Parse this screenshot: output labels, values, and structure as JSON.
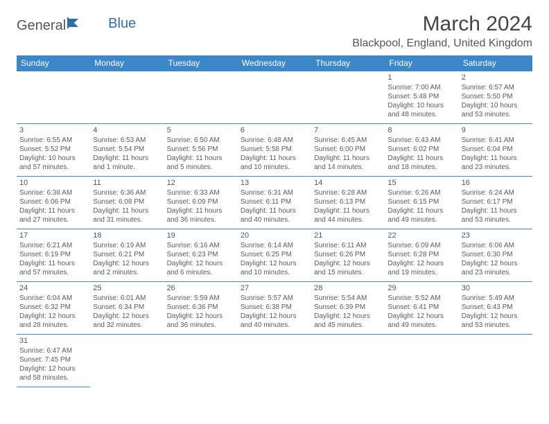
{
  "logo": {
    "part1": "General",
    "part2": "Blue"
  },
  "title": "March 2024",
  "location": "Blackpool, England, United Kingdom",
  "colors": {
    "header_bg": "#3b87c8",
    "header_text": "#ffffff",
    "border": "#3b87c8",
    "text": "#5a5a5a"
  },
  "columns": [
    "Sunday",
    "Monday",
    "Tuesday",
    "Wednesday",
    "Thursday",
    "Friday",
    "Saturday"
  ],
  "weeks": [
    [
      null,
      null,
      null,
      null,
      null,
      {
        "n": "1",
        "sr": "Sunrise: 7:00 AM",
        "ss": "Sunset: 5:48 PM",
        "dl": "Daylight: 10 hours and 48 minutes."
      },
      {
        "n": "2",
        "sr": "Sunrise: 6:57 AM",
        "ss": "Sunset: 5:50 PM",
        "dl": "Daylight: 10 hours and 53 minutes."
      }
    ],
    [
      {
        "n": "3",
        "sr": "Sunrise: 6:55 AM",
        "ss": "Sunset: 5:52 PM",
        "dl": "Daylight: 10 hours and 57 minutes."
      },
      {
        "n": "4",
        "sr": "Sunrise: 6:53 AM",
        "ss": "Sunset: 5:54 PM",
        "dl": "Daylight: 11 hours and 1 minute."
      },
      {
        "n": "5",
        "sr": "Sunrise: 6:50 AM",
        "ss": "Sunset: 5:56 PM",
        "dl": "Daylight: 11 hours and 5 minutes."
      },
      {
        "n": "6",
        "sr": "Sunrise: 6:48 AM",
        "ss": "Sunset: 5:58 PM",
        "dl": "Daylight: 11 hours and 10 minutes."
      },
      {
        "n": "7",
        "sr": "Sunrise: 6:45 AM",
        "ss": "Sunset: 6:00 PM",
        "dl": "Daylight: 11 hours and 14 minutes."
      },
      {
        "n": "8",
        "sr": "Sunrise: 6:43 AM",
        "ss": "Sunset: 6:02 PM",
        "dl": "Daylight: 11 hours and 18 minutes."
      },
      {
        "n": "9",
        "sr": "Sunrise: 6:41 AM",
        "ss": "Sunset: 6:04 PM",
        "dl": "Daylight: 11 hours and 23 minutes."
      }
    ],
    [
      {
        "n": "10",
        "sr": "Sunrise: 6:38 AM",
        "ss": "Sunset: 6:06 PM",
        "dl": "Daylight: 11 hours and 27 minutes."
      },
      {
        "n": "11",
        "sr": "Sunrise: 6:36 AM",
        "ss": "Sunset: 6:08 PM",
        "dl": "Daylight: 11 hours and 31 minutes."
      },
      {
        "n": "12",
        "sr": "Sunrise: 6:33 AM",
        "ss": "Sunset: 6:09 PM",
        "dl": "Daylight: 11 hours and 36 minutes."
      },
      {
        "n": "13",
        "sr": "Sunrise: 6:31 AM",
        "ss": "Sunset: 6:11 PM",
        "dl": "Daylight: 11 hours and 40 minutes."
      },
      {
        "n": "14",
        "sr": "Sunrise: 6:28 AM",
        "ss": "Sunset: 6:13 PM",
        "dl": "Daylight: 11 hours and 44 minutes."
      },
      {
        "n": "15",
        "sr": "Sunrise: 6:26 AM",
        "ss": "Sunset: 6:15 PM",
        "dl": "Daylight: 11 hours and 49 minutes."
      },
      {
        "n": "16",
        "sr": "Sunrise: 6:24 AM",
        "ss": "Sunset: 6:17 PM",
        "dl": "Daylight: 11 hours and 53 minutes."
      }
    ],
    [
      {
        "n": "17",
        "sr": "Sunrise: 6:21 AM",
        "ss": "Sunset: 6:19 PM",
        "dl": "Daylight: 11 hours and 57 minutes."
      },
      {
        "n": "18",
        "sr": "Sunrise: 6:19 AM",
        "ss": "Sunset: 6:21 PM",
        "dl": "Daylight: 12 hours and 2 minutes."
      },
      {
        "n": "19",
        "sr": "Sunrise: 6:16 AM",
        "ss": "Sunset: 6:23 PM",
        "dl": "Daylight: 12 hours and 6 minutes."
      },
      {
        "n": "20",
        "sr": "Sunrise: 6:14 AM",
        "ss": "Sunset: 6:25 PM",
        "dl": "Daylight: 12 hours and 10 minutes."
      },
      {
        "n": "21",
        "sr": "Sunrise: 6:11 AM",
        "ss": "Sunset: 6:26 PM",
        "dl": "Daylight: 12 hours and 15 minutes."
      },
      {
        "n": "22",
        "sr": "Sunrise: 6:09 AM",
        "ss": "Sunset: 6:28 PM",
        "dl": "Daylight: 12 hours and 19 minutes."
      },
      {
        "n": "23",
        "sr": "Sunrise: 6:06 AM",
        "ss": "Sunset: 6:30 PM",
        "dl": "Daylight: 12 hours and 23 minutes."
      }
    ],
    [
      {
        "n": "24",
        "sr": "Sunrise: 6:04 AM",
        "ss": "Sunset: 6:32 PM",
        "dl": "Daylight: 12 hours and 28 minutes."
      },
      {
        "n": "25",
        "sr": "Sunrise: 6:01 AM",
        "ss": "Sunset: 6:34 PM",
        "dl": "Daylight: 12 hours and 32 minutes."
      },
      {
        "n": "26",
        "sr": "Sunrise: 5:59 AM",
        "ss": "Sunset: 6:36 PM",
        "dl": "Daylight: 12 hours and 36 minutes."
      },
      {
        "n": "27",
        "sr": "Sunrise: 5:57 AM",
        "ss": "Sunset: 6:38 PM",
        "dl": "Daylight: 12 hours and 40 minutes."
      },
      {
        "n": "28",
        "sr": "Sunrise: 5:54 AM",
        "ss": "Sunset: 6:39 PM",
        "dl": "Daylight: 12 hours and 45 minutes."
      },
      {
        "n": "29",
        "sr": "Sunrise: 5:52 AM",
        "ss": "Sunset: 6:41 PM",
        "dl": "Daylight: 12 hours and 49 minutes."
      },
      {
        "n": "30",
        "sr": "Sunrise: 5:49 AM",
        "ss": "Sunset: 6:43 PM",
        "dl": "Daylight: 12 hours and 53 minutes."
      }
    ],
    [
      {
        "n": "31",
        "sr": "Sunrise: 6:47 AM",
        "ss": "Sunset: 7:45 PM",
        "dl": "Daylight: 12 hours and 58 minutes."
      },
      null,
      null,
      null,
      null,
      null,
      null
    ]
  ]
}
